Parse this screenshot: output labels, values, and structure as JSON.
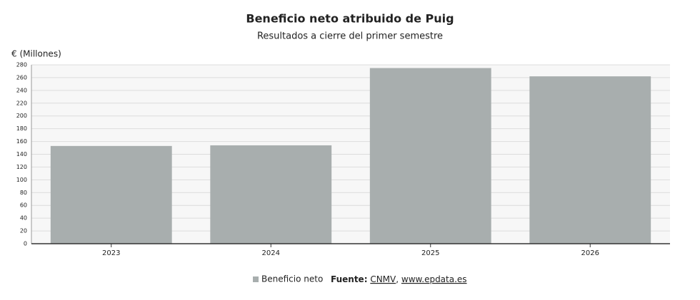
{
  "chart_data": {
    "type": "bar",
    "title": "Beneficio neto atribuido de Puig",
    "subtitle": "Resultados a cierre del primer semestre",
    "y_label": "€ (Millones)",
    "categories": [
      "2023",
      "2024",
      "2025",
      "2026"
    ],
    "series": [
      {
        "name": "Beneficio neto",
        "color": "#a8aeae",
        "values": [
          153,
          154,
          275,
          262
        ]
      }
    ],
    "ylim": [
      0,
      280
    ],
    "yticks": [
      0,
      20,
      40,
      60,
      80,
      100,
      120,
      140,
      160,
      180,
      200,
      220,
      240,
      260,
      280
    ],
    "grid": true,
    "source": {
      "label": "Fuente:",
      "links": [
        "CNMV",
        "www.epdata.es"
      ],
      "separator": ","
    }
  }
}
